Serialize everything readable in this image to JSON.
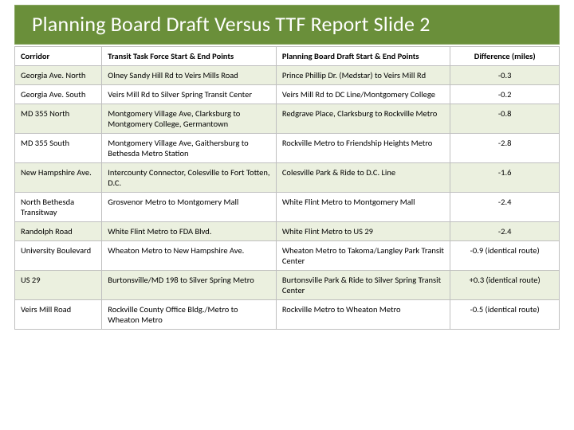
{
  "title": "Planning Board Draft Versus TTF Report Slide 2",
  "colors": {
    "title_bg": "#6a8f3a",
    "band_bg": "#ebf0df",
    "plain_bg": "#ffffff",
    "border": "#bfbfbf",
    "title_text": "#ffffff"
  },
  "fontsizes": {
    "title": 26,
    "table": 10.5,
    "header": 10.5
  },
  "columns": [
    {
      "label": "Corridor",
      "width_pct": 16,
      "align": "left"
    },
    {
      "label": "Transit Task Force Start & End Points",
      "width_pct": 32,
      "align": "left"
    },
    {
      "label": "Planning Board Draft Start & End Points",
      "width_pct": 32,
      "align": "left"
    },
    {
      "label": "Difference (miles)",
      "width_pct": 20,
      "align": "center"
    }
  ],
  "rows": [
    {
      "corridor": "Georgia Ave. North",
      "ttf": "Olney Sandy Hill Rd to Veirs Mills Road",
      "pbd": "Prince Phillip Dr. (Medstar) to Veirs Mill Rd",
      "diff": "-0.3",
      "band": true
    },
    {
      "corridor": "Georgia Ave. South",
      "ttf": "Veirs Mill Rd to Silver Spring Transit Center",
      "pbd": "Veirs Mill Rd to DC Line/Montgomery College",
      "diff": "-0.2",
      "band": false
    },
    {
      "corridor": "MD 355 North",
      "ttf": "Montgomery Village Ave, Clarksburg to Montgomery College, Germantown",
      "pbd": "Redgrave Place, Clarksburg to Rockville Metro",
      "diff": "-0.8",
      "band": true
    },
    {
      "corridor": "MD 355 South",
      "ttf": "Montgomery Village Ave, Gaithersburg to Bethesda Metro Station",
      "pbd": "Rockville Metro to Friendship Heights Metro",
      "diff": "-2.8",
      "band": false
    },
    {
      "corridor": "New Hampshire Ave.",
      "ttf": "Intercounty Connector, Colesville to Fort Totten, D.C.",
      "pbd": "Colesville Park & Ride to D.C. Line",
      "diff": "-1.6",
      "band": true
    },
    {
      "corridor": "North Bethesda Transitway",
      "ttf": "Grosvenor Metro to Montgomery Mall",
      "pbd": "White Flint Metro to Montgomery Mall",
      "diff": "-2.4",
      "band": false
    },
    {
      "corridor": "Randolph Road",
      "ttf": "White Flint Metro to FDA Blvd.",
      "pbd": "White Flint Metro to US 29",
      "diff": "-2.4",
      "band": true
    },
    {
      "corridor": "University Boulevard",
      "ttf": "Wheaton Metro to New Hampshire Ave.",
      "pbd": "Wheaton Metro to Takoma/Langley Park Transit Center",
      "diff": "-0.9 (identical route)",
      "band": false
    },
    {
      "corridor": "US 29",
      "ttf": "Burtonsville/MD 198 to Silver Spring Metro",
      "pbd": "Burtonsville Park & Ride to Silver Spring Transit Center",
      "diff": "+0.3 (identical route)",
      "band": true
    },
    {
      "corridor": "Veirs Mill Road",
      "ttf": "Rockville County Office Bldg./Metro to Wheaton Metro",
      "pbd": "Rockville Metro to Wheaton Metro",
      "diff": "-0.5 (identical route)",
      "band": false
    }
  ]
}
